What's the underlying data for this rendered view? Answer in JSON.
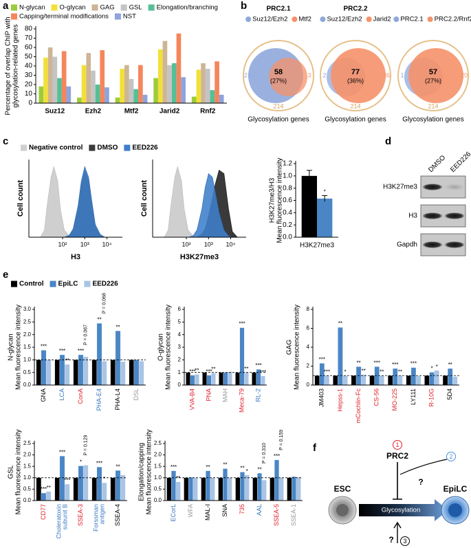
{
  "panel_labels": [
    "a",
    "b",
    "c",
    "d",
    "e",
    "f"
  ],
  "chart_data": [
    {
      "type": "bar",
      "categories": [
        "Suz12",
        "Ezh2",
        "Mtf2",
        "Jarid2",
        "Rnf2"
      ],
      "ylabel": [
        "Percentage of overlap ChIP with",
        "glycosylation-related genes"
      ],
      "ylim": [
        0,
        80
      ],
      "yticks": [
        0,
        10,
        20,
        30,
        40,
        50,
        60,
        70,
        80
      ],
      "series": [
        {
          "name": "N-glycan",
          "color": "#9ccc3c",
          "values": [
            18,
            6,
            6,
            27,
            7
          ]
        },
        {
          "name": "O-glycan",
          "color": "#f2e03a",
          "values": [
            49,
            41,
            37,
            58,
            36
          ]
        },
        {
          "name": "GAG",
          "color": "#cdb596",
          "values": [
            60,
            54,
            41,
            67,
            43
          ]
        },
        {
          "name": "GSL",
          "color": "#c4c4c4",
          "values": [
            50,
            35,
            26,
            41,
            37
          ]
        },
        {
          "name": "Elongation/branching",
          "color": "#56bf95",
          "values": [
            27,
            20,
            15,
            43,
            14
          ]
        },
        {
          "name": "Capping/terminal modifications",
          "color": "#f5865c",
          "values": [
            56,
            57,
            41,
            75,
            45
          ]
        },
        {
          "name": "NST",
          "color": "#8fa3dc",
          "values": [
            18,
            17,
            9,
            28,
            9
          ]
        }
      ]
    },
    {
      "type": "area",
      "x": [
        10,
        15,
        20,
        30,
        40,
        60,
        80,
        120,
        200,
        300,
        500,
        700,
        1000,
        1500,
        2000,
        3000,
        5000,
        8000,
        12000,
        20000
      ],
      "xscale": "log",
      "xlim": [
        3,
        50000
      ],
      "xticks": [
        {
          "value": 100,
          "label": "10²"
        },
        {
          "value": 1000,
          "label": "10³"
        },
        {
          "value": 10000,
          "label": "10⁴"
        }
      ],
      "ylim": [
        0,
        110
      ],
      "xlabel": "H3",
      "ylabel": "Cell count",
      "series": [
        {
          "name": "Negative control",
          "color": "#cfcfcf",
          "values": [
            0,
            10,
            45,
            85,
            100,
            80,
            40,
            10,
            2,
            0,
            0,
            0,
            0,
            0,
            0,
            0,
            0,
            0,
            0,
            0
          ]
        },
        {
          "name": "DMSO",
          "color": "#3a3a3a",
          "values": [
            0,
            0,
            0,
            0,
            0,
            0,
            0,
            0,
            2,
            10,
            40,
            75,
            95,
            80,
            50,
            15,
            3,
            0,
            0,
            0
          ]
        },
        {
          "name": "EED226",
          "color": "#3f7fcb",
          "values": [
            0,
            0,
            0,
            0,
            0,
            0,
            0,
            0,
            3,
            12,
            45,
            80,
            100,
            85,
            55,
            18,
            4,
            0,
            0,
            0
          ]
        }
      ]
    },
    {
      "type": "area",
      "x": [
        10,
        15,
        20,
        30,
        40,
        60,
        80,
        120,
        200,
        300,
        500,
        700,
        1000,
        1500,
        2000,
        3000,
        5000,
        8000,
        12000,
        20000
      ],
      "xscale": "log",
      "xlim": [
        3,
        50000
      ],
      "xticks": [
        {
          "value": 100,
          "label": "10²"
        },
        {
          "value": 1000,
          "label": "10³"
        },
        {
          "value": 10000,
          "label": "10⁴"
        }
      ],
      "ylim": [
        0,
        110
      ],
      "xlabel": "H3K27me3",
      "ylabel": "Cell count",
      "series": [
        {
          "color": "#cfcfcf",
          "values": [
            0,
            10,
            45,
            85,
            100,
            80,
            40,
            10,
            2,
            0,
            0,
            0,
            0,
            0,
            0,
            0,
            0,
            0,
            0,
            0
          ]
        },
        {
          "color": "#3a3a3a",
          "values": [
            0,
            0,
            0,
            0,
            0,
            0,
            0,
            0,
            0,
            0,
            5,
            12,
            30,
            55,
            75,
            95,
            90,
            40,
            8,
            0
          ]
        },
        {
          "color": "#3f7fcb",
          "values": [
            0,
            0,
            0,
            0,
            0,
            0,
            0,
            0,
            2,
            10,
            40,
            70,
            90,
            85,
            65,
            35,
            10,
            2,
            0,
            0
          ]
        }
      ]
    },
    {
      "type": "bar",
      "categories": [
        "H3K27me3"
      ],
      "ylabel": [
        "H3K27me3/H3",
        "Mean fluorescence intensity"
      ],
      "ylim": [
        0,
        1.2
      ],
      "yticks": [
        {
          "value": 0,
          "label": "0.0"
        },
        {
          "value": 0.2,
          "label": "0.2"
        },
        {
          "value": 0.4,
          "label": "0.4"
        },
        {
          "value": 0.6,
          "label": "0.6"
        },
        {
          "value": 0.8,
          "label": "0.8"
        },
        {
          "value": 1,
          "label": "1.0"
        },
        {
          "value": 1.2,
          "label": "1.2"
        }
      ],
      "series": [
        {
          "color": "#000000",
          "values": [
            1.0
          ],
          "errors": [
            0.09
          ]
        },
        {
          "color": "#4a86c5",
          "values": [
            0.63
          ],
          "errors": [
            0.05
          ],
          "sig": [
            "*"
          ]
        }
      ]
    },
    {
      "type": "bar",
      "categories": [
        "GNA",
        "LCA",
        "ConA",
        "PHA-E4",
        "PHA-L4",
        "DSL"
      ],
      "category_colors": [
        "#000000",
        "#3a78c2",
        "#e0202a",
        "#3a78c2",
        "#000000",
        "#999999"
      ],
      "ylabel": [
        "N-glycan",
        "Mean fluorescence intensity"
      ],
      "ylim": [
        0,
        3
      ],
      "hline": 1,
      "yticks": [
        {
          "value": 0,
          "label": "0.0"
        },
        {
          "value": 0.5,
          "label": "0.5"
        },
        {
          "value": 1,
          "label": "1.0"
        },
        {
          "value": 1.5,
          "label": "1.5"
        },
        {
          "value": 2,
          "label": "2.0"
        },
        {
          "value": 2.5,
          "label": "2.5"
        },
        {
          "value": 3,
          "label": "3.0"
        }
      ],
      "p_labels": [
        null,
        null,
        "P = 0.067",
        "P = 0.068",
        null,
        null
      ],
      "series": [
        {
          "name": "Control",
          "color": "#000000",
          "values": [
            1,
            1,
            1,
            1,
            1,
            1
          ]
        },
        {
          "name": "EpiLC",
          "color": "#4a86c5",
          "values": [
            1.38,
            1.2,
            1.2,
            2.45,
            2.15,
            1.0
          ],
          "sig": [
            "***",
            "***",
            "***",
            "**",
            "**",
            null
          ]
        },
        {
          "name": "EED226",
          "color": "#a9c4e4",
          "values": [
            1.0,
            0.82,
            1.12,
            0.95,
            0.93,
            0.95
          ],
          "sig": [
            null,
            "**",
            null,
            null,
            null,
            null
          ]
        }
      ]
    },
    {
      "type": "bar",
      "categories": [
        "VVA-B4",
        "PNA",
        "MAH",
        "Meca-79",
        "RL-2"
      ],
      "category_colors": [
        "#e0202a",
        "#e0202a",
        "#999999",
        "#e0202a",
        "#3a78c2"
      ],
      "ylabel": [
        "O-glycan",
        "Mean fluorescence intensity"
      ],
      "ylim": [
        0,
        6
      ],
      "hline": 1,
      "yticks": [
        0,
        1,
        2,
        3,
        4,
        5,
        6
      ],
      "series": [
        {
          "color": "#000000",
          "values": [
            1,
            1,
            1,
            1,
            1
          ]
        },
        {
          "color": "#4a86c5",
          "values": [
            0.78,
            0.78,
            1.0,
            4.55,
            1.25
          ],
          "sig": [
            "***",
            "***",
            null,
            "***",
            "***"
          ]
        },
        {
          "color": "#a9c4e4",
          "values": [
            0.85,
            0.95,
            1.05,
            1.0,
            0.72
          ],
          "sig": [
            "**",
            "**",
            null,
            "**",
            "***"
          ]
        }
      ]
    },
    {
      "type": "bar",
      "categories": [
        "JM403",
        "Hepss-1",
        "mCochlin-Fc",
        "CS-56",
        "MO-225",
        "LY111",
        "R-10G",
        "5D4"
      ],
      "category_colors": [
        "#000000",
        "#e0202a",
        "#e0202a",
        "#e0202a",
        "#e0202a",
        "#000000",
        "#e0202a",
        "#000000"
      ],
      "ylabel": [
        "GAG",
        "Mean fluorescence intensity"
      ],
      "ylim": [
        0,
        8
      ],
      "hline": 1,
      "yticks": [
        0,
        2,
        4,
        6,
        8
      ],
      "series": [
        {
          "color": "#000000",
          "values": [
            1,
            1,
            1,
            1,
            1,
            1,
            1,
            1
          ]
        },
        {
          "color": "#4a86c5",
          "values": [
            2.3,
            6.1,
            1.95,
            1.95,
            1.75,
            1.85,
            1.35,
            1.75
          ],
          "sig": [
            "***",
            "**",
            "**",
            "***",
            "***",
            "***",
            "*",
            "**"
          ]
        },
        {
          "color": "#a9c4e4",
          "values": [
            1.0,
            1.0,
            1.1,
            1.0,
            1.0,
            0.95,
            1.55,
            0.9
          ],
          "sig": [
            "***",
            "*",
            "**",
            "**",
            "**",
            null,
            "*",
            null
          ]
        }
      ]
    },
    {
      "type": "bar",
      "categories": [
        "CD77",
        [
          "Choleratoxin",
          "subunit B"
        ],
        "SSEA-3",
        [
          "Forssman",
          "antigen"
        ],
        "SSEA-4"
      ],
      "category_colors": [
        "#e0202a",
        "#3a78c2",
        "#e0202a",
        "#3a78c2",
        "#000000"
      ],
      "ylabel": [
        "GSL",
        "Mean fluorescence intensity"
      ],
      "ylim": [
        0,
        2.5
      ],
      "hline": 1,
      "yticks": [
        {
          "value": 0,
          "label": "0.0"
        },
        {
          "value": 0.5,
          "label": "0.5"
        },
        {
          "value": 1,
          "label": "1.0"
        },
        {
          "value": 1.5,
          "label": "1.5"
        },
        {
          "value": 2,
          "label": "2.0"
        },
        {
          "value": 2.5,
          "label": "2.5"
        }
      ],
      "p_labels": [
        null,
        null,
        "P = 0.129",
        null,
        null
      ],
      "series": [
        {
          "color": "#000000",
          "values": [
            1,
            1,
            1,
            1,
            1
          ]
        },
        {
          "color": "#4a86c5",
          "values": [
            0.33,
            1.95,
            1.52,
            1.47,
            1.32
          ],
          "sig": [
            "***",
            "***",
            "*",
            "***",
            "**"
          ]
        },
        {
          "color": "#a9c4e4",
          "values": [
            0.4,
            0.72,
            1.55,
            0.78,
            1.12
          ],
          "sig": [
            "**",
            "***",
            null,
            "*",
            null
          ]
        }
      ]
    },
    {
      "type": "bar",
      "categories": [
        "ECorL",
        "WFA",
        "MAL-I",
        "SNA",
        "735",
        "AAL",
        "SSEA-5",
        "SSEA-1"
      ],
      "category_colors": [
        "#3a78c2",
        "#999999",
        "#000000",
        "#000000",
        "#e0202a",
        "#3a78c2",
        "#e0202a",
        "#999999"
      ],
      "ylabel": [
        "Elongation/capping",
        "Mean fluorescence intensity"
      ],
      "ylim": [
        0,
        2.5
      ],
      "hline": 1,
      "yticks": [
        {
          "value": 0,
          "label": "0.0"
        },
        {
          "value": 0.5,
          "label": "0.5"
        },
        {
          "value": 1,
          "label": "1.0"
        },
        {
          "value": 1.5,
          "label": "1.5"
        },
        {
          "value": 2,
          "label": "2.0"
        },
        {
          "value": 2.5,
          "label": "2.5"
        }
      ],
      "p_labels": [
        null,
        null,
        null,
        null,
        null,
        "P = 0.310",
        "P = 0.159",
        null
      ],
      "series": [
        {
          "color": "#000000",
          "values": [
            1,
            1,
            1,
            1,
            1,
            1,
            1,
            1
          ]
        },
        {
          "color": "#4a86c5",
          "values": [
            1.3,
            1.02,
            1.3,
            1.4,
            1.25,
            1.2,
            1.78,
            1.05
          ],
          "sig": [
            "***",
            null,
            "**",
            "**",
            "**",
            "**",
            "***",
            null
          ]
        },
        {
          "color": "#a9c4e4",
          "values": [
            0.82,
            1.0,
            1.0,
            1.0,
            1.12,
            0.9,
            1.0,
            1.02
          ],
          "sig": [
            "**",
            null,
            null,
            null,
            "*",
            null,
            null,
            null
          ]
        }
      ]
    }
  ],
  "venn": [
    {
      "title": "PRC2.1",
      "sets": [
        {
          "name": "Suz12/Ezh2",
          "color": "#8fa8dc",
          "only": 21
        },
        {
          "name": "Mtf2",
          "color": "#f6916a",
          "only": 3
        }
      ],
      "overlap": 58,
      "overlap_share": "(27%)",
      "total": 214,
      "total_label": "Glycosylation genes"
    },
    {
      "title": "PRC2.2",
      "sets": [
        {
          "name": "Suz12/Ezh2",
          "color": "#8fa8dc",
          "only": 2
        },
        {
          "name": "Jarid2",
          "color": "#f6916a",
          "only": 36
        }
      ],
      "overlap": 77,
      "overlap_share": "(36%)",
      "total": 214,
      "total_label": "Glycosylation genes"
    },
    {
      "sets": [
        {
          "name": "PRC2.1",
          "color": "#8fa8dc",
          "only": 1
        },
        {
          "name": "PRC2.2/Rnf2",
          "color": "#f6916a",
          "only": 20
        }
      ],
      "overlap": 57,
      "overlap_share": "(27%)",
      "total": 214,
      "total_label": "Glycosylation genes"
    }
  ],
  "blot": {
    "lanes": [
      "DMSO",
      "EED226"
    ],
    "rows": [
      "H3K27me3",
      "H3",
      "Gapdh"
    ]
  },
  "diagram": {
    "left": "ESC",
    "right": "EpiLC",
    "regulator": "PRC2",
    "process": "Glycosylation",
    "markers": [
      "1",
      "2",
      "3"
    ],
    "questions": [
      "?",
      "?"
    ]
  }
}
